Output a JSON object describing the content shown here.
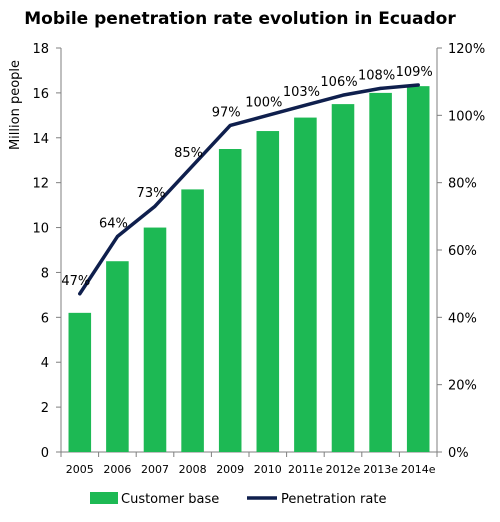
{
  "chart_data": {
    "type": "bar",
    "title": "Mobile penetration rate evolution in Ecuador",
    "ylabel": "Million people",
    "ylim": [
      0,
      18
    ],
    "y_ticks": [
      "0",
      "2",
      "4",
      "6",
      "8",
      "10",
      "12",
      "14",
      "16",
      "18"
    ],
    "y2lim": [
      0,
      120
    ],
    "y2_ticks": [
      "0%",
      "20%",
      "40%",
      "60%",
      "80%",
      "100%",
      "120%"
    ],
    "categories": [
      "2005",
      "2006",
      "2007",
      "2008",
      "2009",
      "2010",
      "2011e",
      "2012e",
      "2013e",
      "2014e"
    ],
    "series": [
      {
        "name": "Customer base",
        "type": "bar",
        "axis": "left",
        "color": "#1db954",
        "values": [
          6.2,
          8.5,
          10.0,
          11.7,
          13.5,
          14.3,
          14.9,
          15.5,
          16.0,
          16.3
        ]
      },
      {
        "name": "Penetration rate",
        "type": "line",
        "axis": "right",
        "color": "#0f1f4d",
        "values": [
          47,
          64,
          73,
          85,
          97,
          100,
          103,
          106,
          108,
          109
        ],
        "labels": [
          "47%",
          "64%",
          "73%",
          "85%",
          "97%",
          "100%",
          "103%",
          "106%",
          "108%",
          "109%"
        ]
      }
    ],
    "grid": false,
    "legend_position": "bottom"
  }
}
